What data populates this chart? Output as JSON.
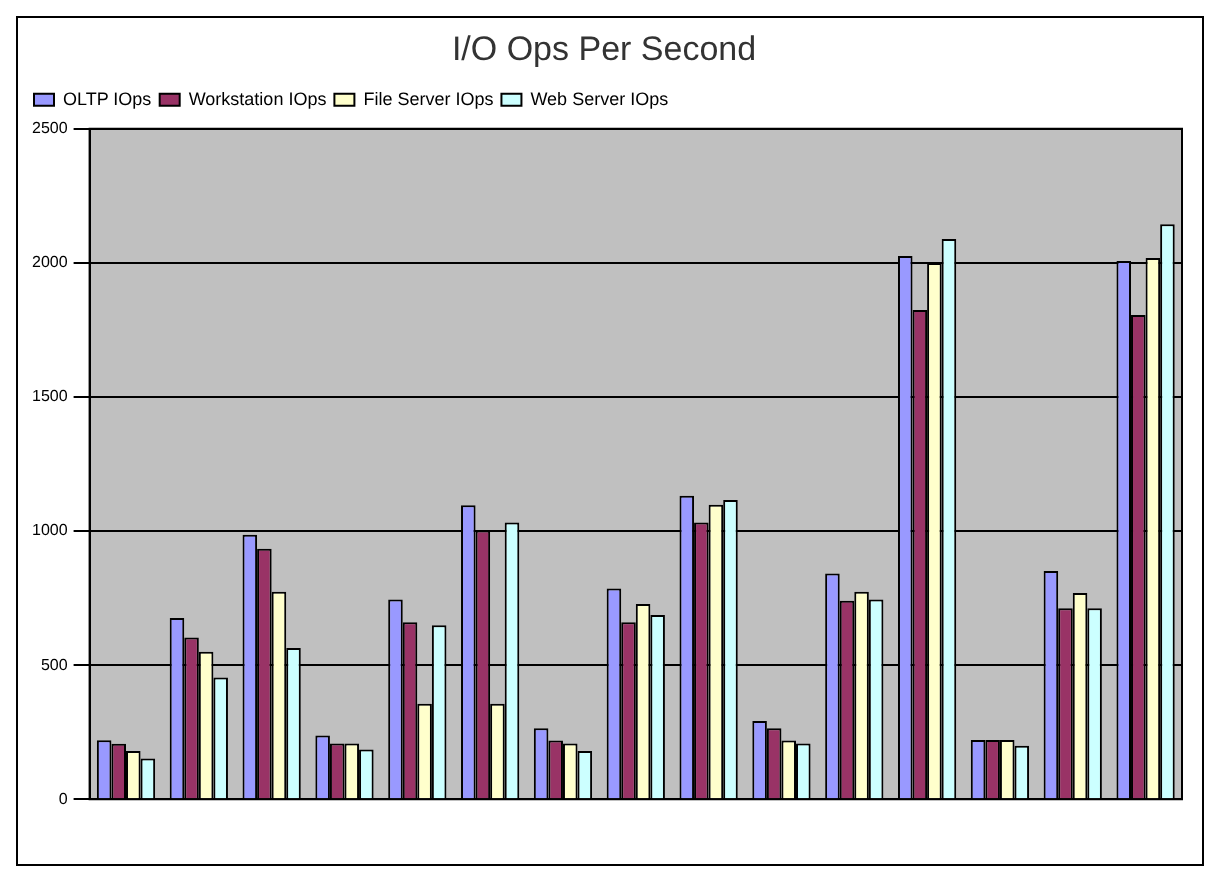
{
  "chart_data": {
    "type": "bar",
    "title": "I/O Ops Per Second",
    "categories": [
      null,
      null,
      null,
      null,
      null,
      null,
      null,
      null,
      null,
      null,
      null,
      null,
      null,
      null,
      null
    ],
    "series": [
      {
        "name": "OLTP IOps",
        "color": "#9999ff",
        "values": [
          220,
          676,
          986,
          238,
          745,
          1096,
          265,
          786,
          1132,
          292,
          842,
          2026,
          221,
          851,
          2007
        ]
      },
      {
        "name": "Workstation IOps",
        "color": "#993366",
        "values": [
          207,
          603,
          934,
          208,
          660,
          1002,
          219,
          660,
          1032,
          265,
          740,
          1824,
          221,
          712,
          1806
        ]
      },
      {
        "name": "File Server IOps",
        "color": "#ffffcc",
        "values": [
          180,
          550,
          774,
          208,
          356,
          356,
          208,
          728,
          1098,
          219,
          774,
          2000,
          221,
          769,
          2018
        ]
      },
      {
        "name": "Web Server IOps",
        "color": "#ccffff",
        "values": [
          152,
          454,
          564,
          185,
          649,
          1032,
          180,
          687,
          1116,
          208,
          745,
          2089,
          199,
          712,
          2144
        ]
      }
    ],
    "ylim": [
      0,
      2500
    ],
    "yticks": [
      0,
      500,
      1000,
      1500,
      2000,
      2500
    ],
    "grid": "y",
    "legend": "top left"
  }
}
